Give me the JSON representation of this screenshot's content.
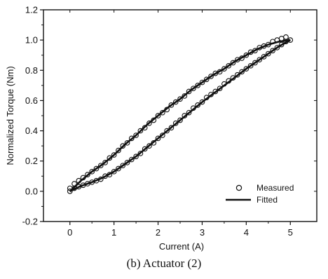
{
  "caption": "(b) Actuator (2)",
  "chart_data": {
    "type": "scatter",
    "title": "",
    "xlabel": "Current (A)",
    "ylabel": "Normalized Torque (Nm)",
    "xlim": [
      -0.6,
      5.6
    ],
    "ylim": [
      -0.2,
      1.2
    ],
    "xticks": [
      0,
      1,
      2,
      3,
      4,
      5
    ],
    "yticks": [
      -0.2,
      0.0,
      0.2,
      0.4,
      0.6,
      0.8,
      1.0,
      1.2
    ],
    "xtick_labels": [
      "0",
      "1",
      "2",
      "3",
      "4",
      "5"
    ],
    "ytick_labels": [
      "-0.2",
      "0.0",
      "0.2",
      "0.4",
      "0.6",
      "0.8",
      "1.0",
      "1.2"
    ],
    "grid": false,
    "legend_position": "bottom-right",
    "series": [
      {
        "name": "Measured",
        "marker": "open-circle",
        "branch": "increasing",
        "x": [
          0.0,
          0.1,
          0.2,
          0.3,
          0.4,
          0.5,
          0.6,
          0.7,
          0.8,
          0.9,
          1.0,
          1.1,
          1.2,
          1.3,
          1.4,
          1.5,
          1.6,
          1.7,
          1.8,
          1.9,
          2.0,
          2.1,
          2.2,
          2.3,
          2.4,
          2.5,
          2.6,
          2.7,
          2.8,
          2.9,
          3.0,
          3.1,
          3.2,
          3.3,
          3.4,
          3.5,
          3.6,
          3.7,
          3.8,
          3.9,
          4.0,
          4.1,
          4.2,
          4.3,
          4.4,
          4.5,
          4.6,
          4.7,
          4.8,
          4.9,
          5.0
        ],
        "y": [
          0.0,
          0.02,
          0.03,
          0.04,
          0.05,
          0.06,
          0.07,
          0.08,
          0.1,
          0.11,
          0.13,
          0.15,
          0.17,
          0.19,
          0.21,
          0.23,
          0.25,
          0.28,
          0.3,
          0.32,
          0.35,
          0.37,
          0.4,
          0.42,
          0.45,
          0.47,
          0.5,
          0.52,
          0.55,
          0.57,
          0.59,
          0.62,
          0.64,
          0.66,
          0.68,
          0.71,
          0.73,
          0.75,
          0.77,
          0.79,
          0.81,
          0.83,
          0.85,
          0.87,
          0.89,
          0.91,
          0.93,
          0.95,
          0.97,
          0.99,
          1.0
        ]
      },
      {
        "name": "Measured",
        "marker": "open-circle",
        "branch": "decreasing",
        "x": [
          4.9,
          4.8,
          4.7,
          4.6,
          4.5,
          4.4,
          4.3,
          4.2,
          4.1,
          4.0,
          3.9,
          3.8,
          3.7,
          3.6,
          3.5,
          3.4,
          3.3,
          3.2,
          3.1,
          3.0,
          2.9,
          2.8,
          2.7,
          2.6,
          2.5,
          2.4,
          2.3,
          2.2,
          2.1,
          2.0,
          1.9,
          1.8,
          1.7,
          1.6,
          1.5,
          1.4,
          1.3,
          1.2,
          1.1,
          1.0,
          0.9,
          0.8,
          0.7,
          0.6,
          0.5,
          0.4,
          0.3,
          0.2,
          0.1,
          0.0
        ],
        "y": [
          1.02,
          1.01,
          1.0,
          0.99,
          0.97,
          0.96,
          0.95,
          0.93,
          0.92,
          0.9,
          0.88,
          0.87,
          0.85,
          0.83,
          0.81,
          0.79,
          0.78,
          0.76,
          0.74,
          0.72,
          0.7,
          0.68,
          0.66,
          0.63,
          0.61,
          0.59,
          0.57,
          0.54,
          0.52,
          0.5,
          0.47,
          0.45,
          0.42,
          0.4,
          0.37,
          0.35,
          0.32,
          0.3,
          0.27,
          0.24,
          0.22,
          0.19,
          0.17,
          0.15,
          0.13,
          0.11,
          0.09,
          0.07,
          0.05,
          0.02
        ]
      },
      {
        "name": "Fitted",
        "style": "solid-line",
        "branch": "increasing",
        "x": [
          0.0,
          0.25,
          0.5,
          0.75,
          1.0,
          1.25,
          1.5,
          1.75,
          2.0,
          2.25,
          2.5,
          2.75,
          3.0,
          3.25,
          3.5,
          3.75,
          4.0,
          4.25,
          4.5,
          4.75,
          5.0
        ],
        "y": [
          0.0,
          0.035,
          0.06,
          0.09,
          0.13,
          0.18,
          0.23,
          0.29,
          0.35,
          0.41,
          0.47,
          0.53,
          0.59,
          0.645,
          0.7,
          0.755,
          0.81,
          0.86,
          0.91,
          0.96,
          1.0
        ]
      },
      {
        "name": "Fitted",
        "style": "solid-line",
        "branch": "decreasing",
        "x": [
          5.0,
          4.75,
          4.5,
          4.25,
          4.0,
          3.75,
          3.5,
          3.25,
          3.0,
          2.75,
          2.5,
          2.25,
          2.0,
          1.75,
          1.5,
          1.25,
          1.0,
          0.75,
          0.5,
          0.25,
          0.0
        ],
        "y": [
          1.0,
          0.99,
          0.97,
          0.94,
          0.9,
          0.86,
          0.81,
          0.77,
          0.72,
          0.67,
          0.61,
          0.56,
          0.5,
          0.44,
          0.37,
          0.31,
          0.24,
          0.18,
          0.13,
          0.07,
          0.0
        ]
      }
    ]
  }
}
